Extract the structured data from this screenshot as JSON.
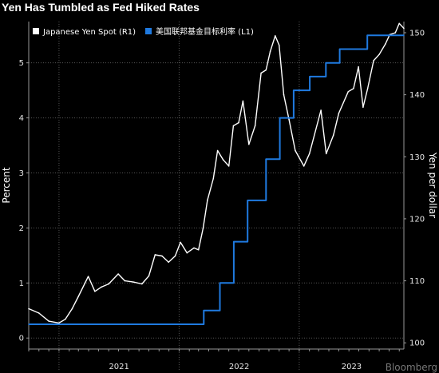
{
  "title": "Yen Has Tumbled as Fed Hiked Rates",
  "watermark": "Bloomberg",
  "colors": {
    "background": "#000000",
    "yen_series": "#ffffff",
    "fed_series": "#1f7ae0",
    "grid": "#555555",
    "axis": "#999999"
  },
  "chart_data": {
    "type": "line",
    "title": "Yen Has Tumbled as Fed Hiked Rates",
    "legend_position": "top-left",
    "grid": true,
    "x_axis": {
      "type": "date",
      "range": [
        "2020-10-01",
        "2023-11-15"
      ],
      "tick_labels": [
        "2021",
        "2022",
        "2023"
      ]
    },
    "y_left": {
      "label": "Percent",
      "range": [
        -0.2,
        5.75
      ],
      "ticks": [
        0,
        1,
        2,
        3,
        4,
        5
      ]
    },
    "y_right": {
      "label": "Yen per dollar",
      "range": [
        99,
        151.8
      ],
      "ticks": [
        100,
        110,
        120,
        130,
        140,
        150
      ]
    },
    "series": [
      {
        "name": "Japanese Yen Spot (R1)",
        "axis": "right",
        "color": "#ffffff",
        "x": [
          "2020-10-01",
          "2020-11-01",
          "2020-12-01",
          "2021-01-01",
          "2021-01-20",
          "2021-02-10",
          "2021-03-01",
          "2021-03-31",
          "2021-04-20",
          "2021-05-10",
          "2021-06-01",
          "2021-06-30",
          "2021-07-20",
          "2021-08-15",
          "2021-09-10",
          "2021-10-01",
          "2021-10-20",
          "2021-11-10",
          "2021-11-30",
          "2021-12-20",
          "2022-01-05",
          "2022-01-25",
          "2022-02-15",
          "2022-03-01",
          "2022-03-15",
          "2022-03-28",
          "2022-04-15",
          "2022-04-28",
          "2022-05-15",
          "2022-06-01",
          "2022-06-15",
          "2022-07-01",
          "2022-07-14",
          "2022-08-01",
          "2022-08-20",
          "2022-09-07",
          "2022-09-22",
          "2022-10-05",
          "2022-10-20",
          "2022-11-01",
          "2022-11-15",
          "2022-12-01",
          "2022-12-20",
          "2023-01-15",
          "2023-02-01",
          "2023-03-08",
          "2023-03-24",
          "2023-04-15",
          "2023-05-01",
          "2023-05-30",
          "2023-06-15",
          "2023-06-30",
          "2023-07-14",
          "2023-07-28",
          "2023-08-15",
          "2023-09-01",
          "2023-09-20",
          "2023-10-03",
          "2023-10-20",
          "2023-11-01",
          "2023-11-15"
        ],
        "y": [
          105.5,
          104.8,
          103.5,
          103.2,
          103.8,
          105.5,
          107.5,
          110.7,
          108.3,
          109.0,
          109.5,
          111.1,
          110.0,
          109.8,
          109.5,
          110.8,
          114.2,
          114.0,
          113.0,
          114.0,
          116.2,
          114.5,
          115.3,
          115.0,
          118.5,
          123.0,
          126.5,
          131.0,
          129.5,
          128.5,
          135.0,
          135.5,
          139.0,
          132.0,
          135.0,
          143.5,
          144.0,
          147.0,
          149.5,
          148.0,
          140.0,
          136.0,
          131.0,
          128.5,
          130.5,
          137.5,
          130.5,
          133.5,
          137.0,
          140.5,
          141.0,
          144.5,
          138.0,
          141.0,
          145.5,
          146.5,
          148.2,
          149.7,
          150.0,
          151.5,
          150.7
        ]
      },
      {
        "name": "美国联邦基金目标利率 (L1)",
        "axis": "left",
        "color": "#1f7ae0",
        "step": true,
        "x": [
          "2020-10-01",
          "2022-03-17",
          "2022-05-05",
          "2022-06-16",
          "2022-07-28",
          "2022-09-22",
          "2022-11-03",
          "2022-12-15",
          "2023-02-02",
          "2023-03-23",
          "2023-05-04",
          "2023-07-27",
          "2023-11-15"
        ],
        "y": [
          0.25,
          0.5,
          1.0,
          1.75,
          2.5,
          3.25,
          4.0,
          4.5,
          4.75,
          5.0,
          5.25,
          5.5,
          5.5
        ]
      }
    ]
  }
}
